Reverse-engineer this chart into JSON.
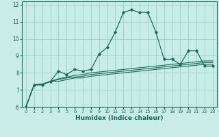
{
  "xlabel": "Humidex (Indice chaleur)",
  "bg_color": "#c8ece6",
  "grid_color": "#a0d4cc",
  "line_color": "#1a6b5a",
  "xlim": [
    -0.5,
    23.5
  ],
  "ylim": [
    6,
    12.2
  ],
  "yticks": [
    6,
    7,
    8,
    9,
    10,
    11,
    12
  ],
  "xticks": [
    0,
    1,
    2,
    3,
    4,
    5,
    6,
    7,
    8,
    9,
    10,
    11,
    12,
    13,
    14,
    15,
    16,
    17,
    18,
    19,
    20,
    21,
    22,
    23
  ],
  "series_main": [
    6.0,
    7.3,
    7.3,
    7.5,
    8.1,
    7.9,
    8.2,
    8.1,
    8.2,
    9.1,
    9.5,
    10.4,
    11.55,
    11.7,
    11.55,
    11.55,
    10.4,
    8.8,
    8.8,
    8.5,
    9.3,
    9.3,
    8.4,
    8.4
  ],
  "series_flat": [
    [
      6.0,
      7.3,
      7.3,
      7.5,
      7.5,
      7.6,
      7.7,
      7.7,
      7.8,
      7.85,
      7.9,
      7.95,
      8.0,
      8.05,
      8.1,
      8.15,
      8.2,
      8.25,
      8.3,
      8.35,
      8.4,
      8.45,
      8.5,
      8.5
    ],
    [
      6.0,
      7.3,
      7.3,
      7.5,
      7.6,
      7.7,
      7.75,
      7.8,
      7.9,
      7.95,
      8.0,
      8.05,
      8.1,
      8.15,
      8.2,
      8.25,
      8.3,
      8.35,
      8.4,
      8.45,
      8.5,
      8.55,
      8.6,
      8.6
    ],
    [
      6.0,
      7.3,
      7.35,
      7.5,
      7.65,
      7.75,
      7.85,
      7.9,
      8.0,
      8.05,
      8.1,
      8.15,
      8.2,
      8.25,
      8.3,
      8.35,
      8.4,
      8.45,
      8.5,
      8.55,
      8.6,
      8.65,
      8.7,
      8.7
    ]
  ]
}
